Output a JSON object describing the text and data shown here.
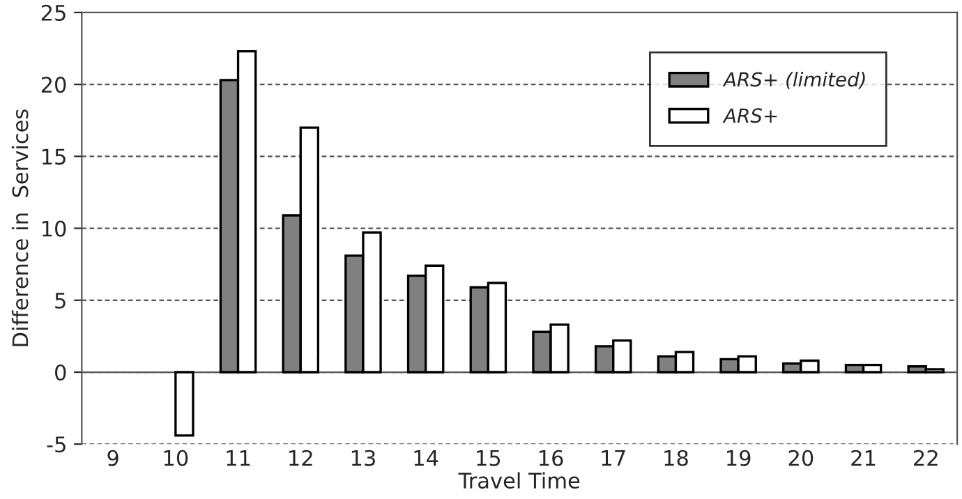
{
  "chart_data": {
    "type": "bar",
    "xlabel": "Travel Time",
    "ylabel": "Difference in  Services",
    "categories": [
      "9",
      "10",
      "11",
      "12",
      "13",
      "14",
      "15",
      "16",
      "17",
      "18",
      "19",
      "20",
      "21",
      "22"
    ],
    "series": [
      {
        "name": "ARS+ (limited)",
        "color": "#808080",
        "values": [
          null,
          null,
          20.3,
          10.9,
          8.1,
          6.7,
          5.9,
          2.8,
          1.8,
          1.1,
          0.9,
          0.6,
          0.5,
          0.4
        ]
      },
      {
        "name": "ARS+",
        "color": "#ffffff",
        "values": [
          null,
          -4.4,
          22.3,
          17.0,
          9.7,
          7.4,
          6.2,
          3.3,
          2.2,
          1.4,
          1.1,
          0.8,
          0.5,
          0.2
        ]
      }
    ],
    "ylim": [
      -5,
      25
    ],
    "yticks": [
      -5,
      0,
      5,
      10,
      15,
      20,
      25
    ],
    "grid": "y",
    "legend": "top right"
  }
}
